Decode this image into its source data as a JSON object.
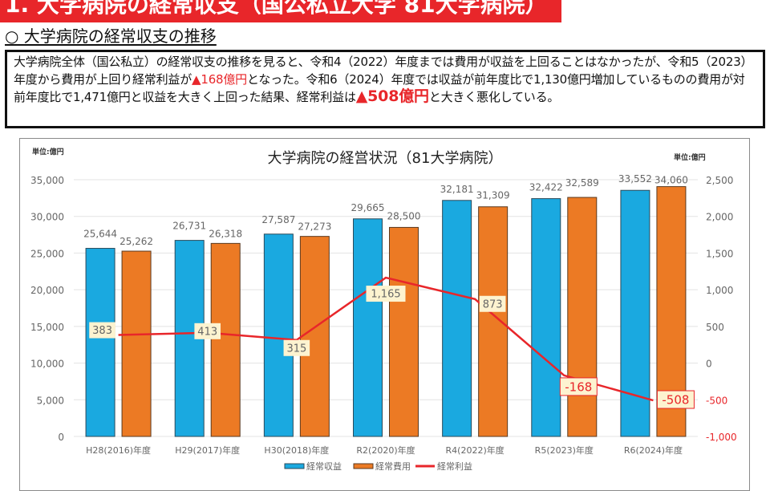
{
  "header": {
    "banner_title": "1. 大学病院の経常収支（国公私立大学 81大学病院）",
    "section_title": "○ 大学病院の経常収支の推移"
  },
  "summary": {
    "part1": "大学病院全体（国公私立）の経常収支の推移を見ると、令和4（2022）年度までは費用が収益を上回ることはなかったが、令和5（2023）年度から費用が上回り経常利益が",
    "highlight1": "▲168億円",
    "part2": "となった。令和6（2024）年度では収益が前年度比で1,130億円増加しているものの費用が対前年度比で1,471億円と収益を大きく上回った結果、経常利益は",
    "highlight2": "▲508億円",
    "part3": "と大きく悪化している。"
  },
  "colors": {
    "banner": "#e8262a",
    "revenue": "#1aa9e0",
    "expense": "#ec7a24",
    "profit": "#e8262a",
    "label_bg": "#fdf3d0"
  },
  "chart_data": {
    "type": "bar",
    "title": "大学病院の経営状況（81大学病院）",
    "left_unit_label": "単位:億円",
    "right_unit_label": "単位:億円",
    "categories": [
      "H28(2016)年度",
      "H29(2017)年度",
      "H30(2018)年度",
      "R2(2020)年度",
      "R4(2022)年度",
      "R5(2023)年度",
      "R6(2024)年度"
    ],
    "series": [
      {
        "name": "経常収益",
        "type": "bar",
        "axis": "left",
        "values": [
          25644,
          26731,
          27587,
          29665,
          32181,
          32422,
          33552
        ],
        "labels": [
          "25,644",
          "26,731",
          "27,587",
          "29,665",
          "32,181",
          "32,422",
          "33,552"
        ]
      },
      {
        "name": "経常費用",
        "type": "bar",
        "axis": "left",
        "values": [
          25262,
          26318,
          27273,
          28500,
          31309,
          32589,
          34060
        ],
        "labels": [
          "25,262",
          "26,318",
          "27,273",
          "28,500",
          "31,309",
          "32,589",
          "34,060"
        ]
      },
      {
        "name": "経常利益",
        "type": "line",
        "axis": "right",
        "values": [
          383,
          413,
          315,
          1165,
          873,
          -168,
          -508
        ],
        "labels": [
          "383",
          "413",
          "315",
          "1,165",
          "873",
          "-168",
          "-508"
        ]
      }
    ],
    "left_axis": {
      "ylim": [
        0,
        35000
      ],
      "ticks": [
        0,
        5000,
        10000,
        15000,
        20000,
        25000,
        30000,
        35000
      ],
      "tick_labels": [
        "0",
        "5,000",
        "10,000",
        "15,000",
        "20,000",
        "25,000",
        "30,000",
        "35,000"
      ]
    },
    "right_axis": {
      "ylim": [
        -1000,
        2500
      ],
      "ticks": [
        -1000,
        -500,
        0,
        500,
        1000,
        1500,
        2000,
        2500
      ],
      "tick_labels": [
        "-1,000",
        "-500",
        "0",
        "500",
        "1,000",
        "1,500",
        "2,000",
        "2,500"
      ]
    },
    "grid": true,
    "legend": {
      "position": "bottom-center",
      "items": [
        "経常収益",
        "経常費用",
        "経常利益"
      ]
    }
  }
}
